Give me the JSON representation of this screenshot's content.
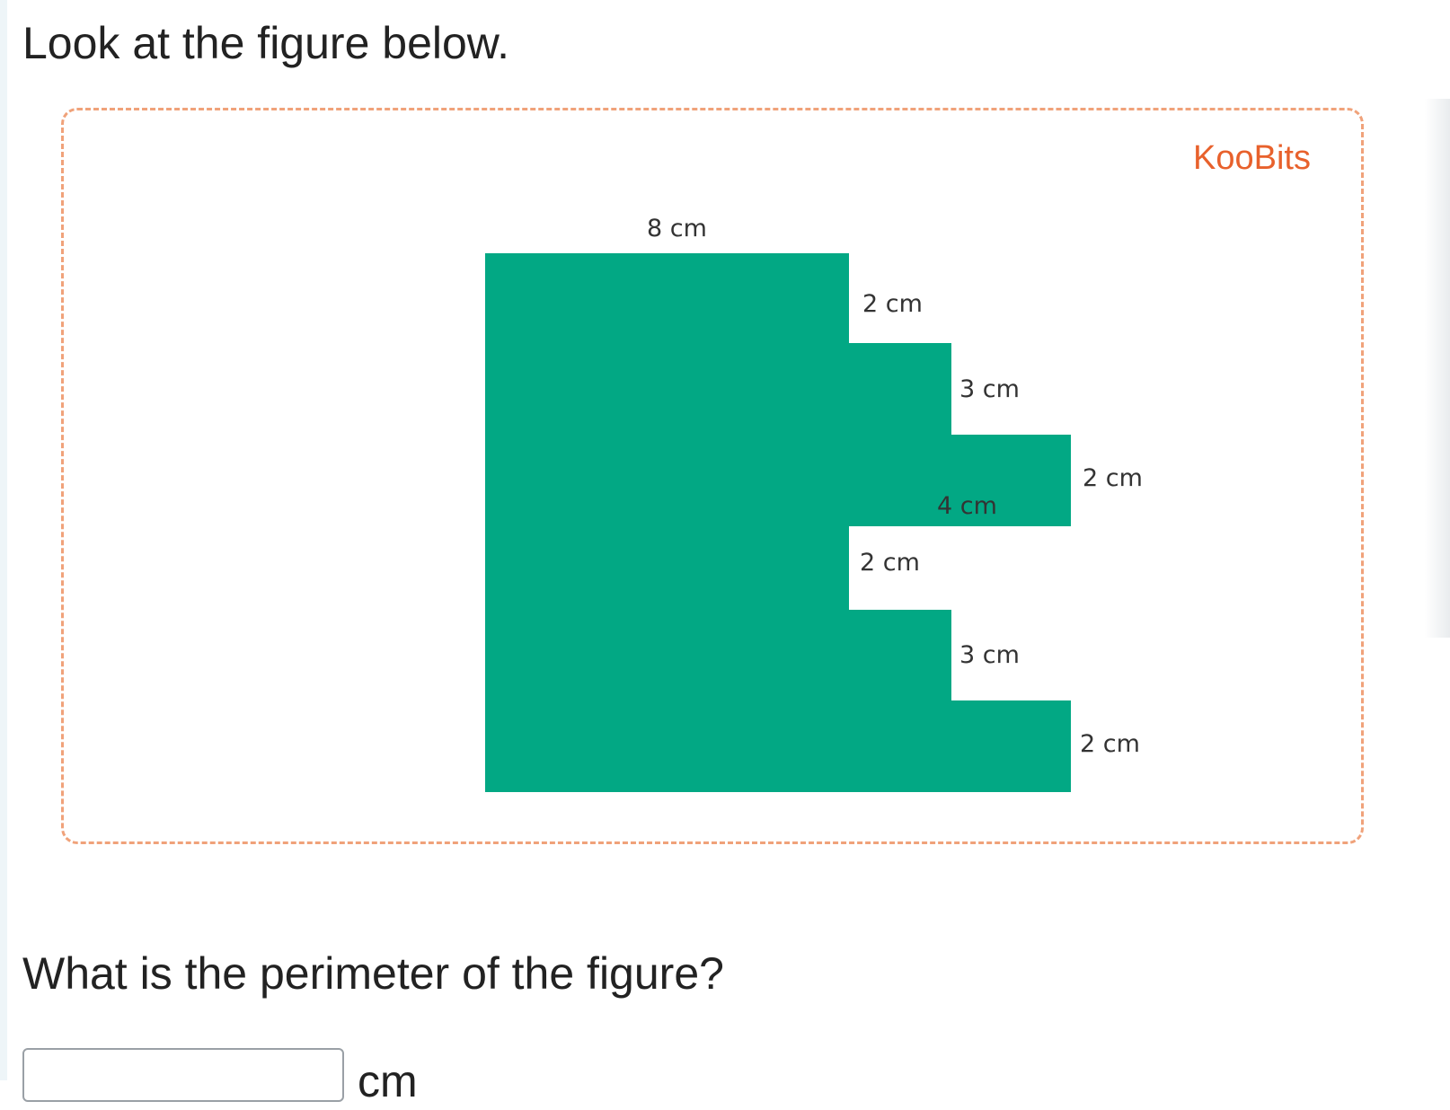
{
  "question": {
    "intro": "Look at the figure below.",
    "prompt": "What is the perimeter of the figure?",
    "answer_value": "",
    "answer_unit": "cm"
  },
  "figure": {
    "brand": "KooBits",
    "brand_color": "#e8612c",
    "border_color": "#f0a27a",
    "shape_color": "#02a884",
    "labels": {
      "top": "8 cm",
      "step1_vertical": "2 cm",
      "step2_vertical": "3 cm",
      "right_upper_vertical": "2 cm",
      "inner_horizontal": "4 cm",
      "notch_vertical": "2 cm",
      "step3_vertical": "3 cm",
      "right_lower_vertical": "2 cm"
    }
  }
}
